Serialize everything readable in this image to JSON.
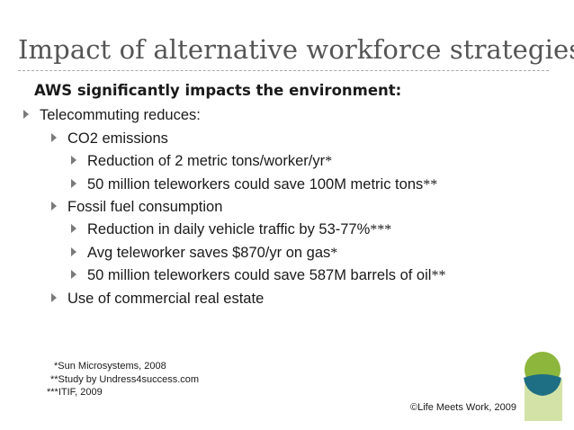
{
  "slide": {
    "title": "Impact of alternative workforce strategies",
    "subtitle": "AWS significantly impacts the environment:",
    "bullets": [
      {
        "text": "Telecommuting reduces:",
        "mark": ""
      },
      {
        "text": "CO2 emissions",
        "mark": ""
      },
      {
        "text": "Reduction of 2 metric tons/worker/yr",
        "mark": "*"
      },
      {
        "text": "50 million teleworkers could save 100M metric tons",
        "mark": "**"
      },
      {
        "text": "Fossil fuel consumption",
        "mark": ""
      },
      {
        "text": "Reduction in daily vehicle traffic by 53-77%",
        "mark": "***"
      },
      {
        "text": "Avg teleworker saves $870/yr on gas",
        "mark": "*"
      },
      {
        "text": "50 million teleworkers could save 587M barrels of oil",
        "mark": "**"
      },
      {
        "text": "Use of commercial real estate",
        "mark": ""
      }
    ],
    "sources": [
      "*Sun Microsystems, 2008",
      "**Study by Undress4success.com",
      "***ITIF, 2009"
    ],
    "copyright": "©Life Meets Work, 2009"
  },
  "colors": {
    "title": "#555555",
    "text": "#1a1a1a",
    "bullet_arrow": "#7a7a7a",
    "logo_green": "#8cb63c",
    "logo_teal": "#1f6f84",
    "logo_light_green": "#d3e3a8"
  },
  "icons": {
    "bullet": "triangle-right-icon",
    "logo": "life-meets-work-logo"
  }
}
